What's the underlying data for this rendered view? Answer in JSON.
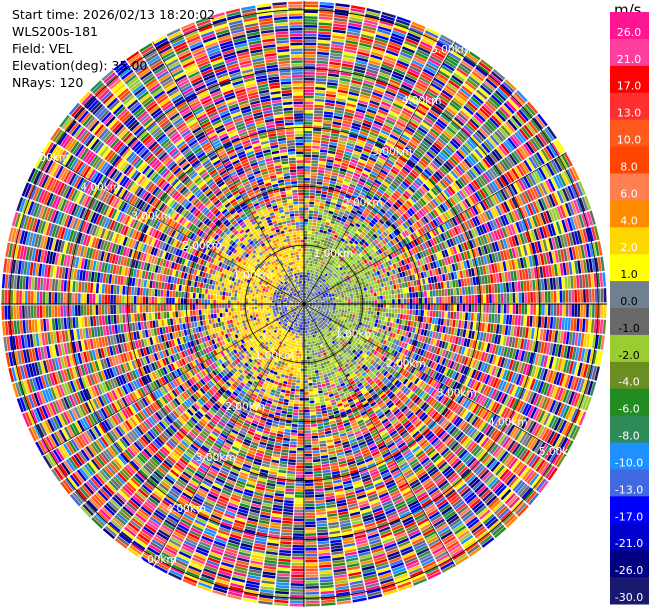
{
  "info": {
    "start_time": "Start time: 2026/02/13 18:20:02",
    "site": "WLS200s-181",
    "field": "Field: VEL",
    "elevation": "Elevation(deg): 35.00",
    "nrays": "NRays: 120"
  },
  "colorbar": {
    "unit": "m/s",
    "ticks": [
      "26.0",
      "21.0",
      "17.0",
      "13.0",
      "10.0",
      "8.0",
      "6.0",
      "4.0",
      "2.0",
      "1.0",
      "0.0",
      "-1.0",
      "-2.0",
      "-4.0",
      "-6.0",
      "-8.0",
      "-10.0",
      "-13.0",
      "-17.0",
      "-21.0",
      "-26.0",
      "-30.0"
    ],
    "colors": [
      "#ff1493",
      "#ff3fa0",
      "#ff0000",
      "#ff2f2f",
      "#ff5a1e",
      "#ff4500",
      "#ff7f50",
      "#ff8c00",
      "#ffd700",
      "#ffff00",
      "#708090",
      "#696969",
      "#9acd32",
      "#6b8e23",
      "#228b22",
      "#2e8b57",
      "#1e90ff",
      "#4169e1",
      "#0000ff",
      "#0000cd",
      "#000080",
      "#191970"
    ]
  },
  "chart_data": {
    "type": "heatmap",
    "projection": "polar",
    "field": "VEL",
    "units": "m/s",
    "elevation_deg": 35.0,
    "nrays": 120,
    "range_rings_km": [
      1.0,
      2.0,
      3.0,
      4.0,
      5.0
    ],
    "range_ring_labels": [
      "1.00km",
      "2.00km",
      "3.00km",
      "4.00km",
      "5.00km"
    ],
    "max_range_km": 5.15,
    "radial_zones": [
      {
        "range_km": [
          0.0,
          0.55
        ],
        "dominant": "0.0"
      },
      {
        "range_km": [
          0.55,
          1.25
        ],
        "dominant_east": "-2.0",
        "dominant_west": "2.0"
      },
      {
        "range_km": [
          1.25,
          1.75
        ],
        "dominant": "mixed"
      },
      {
        "range_km": [
          1.75,
          5.15
        ],
        "dominant": "noise"
      }
    ]
  }
}
